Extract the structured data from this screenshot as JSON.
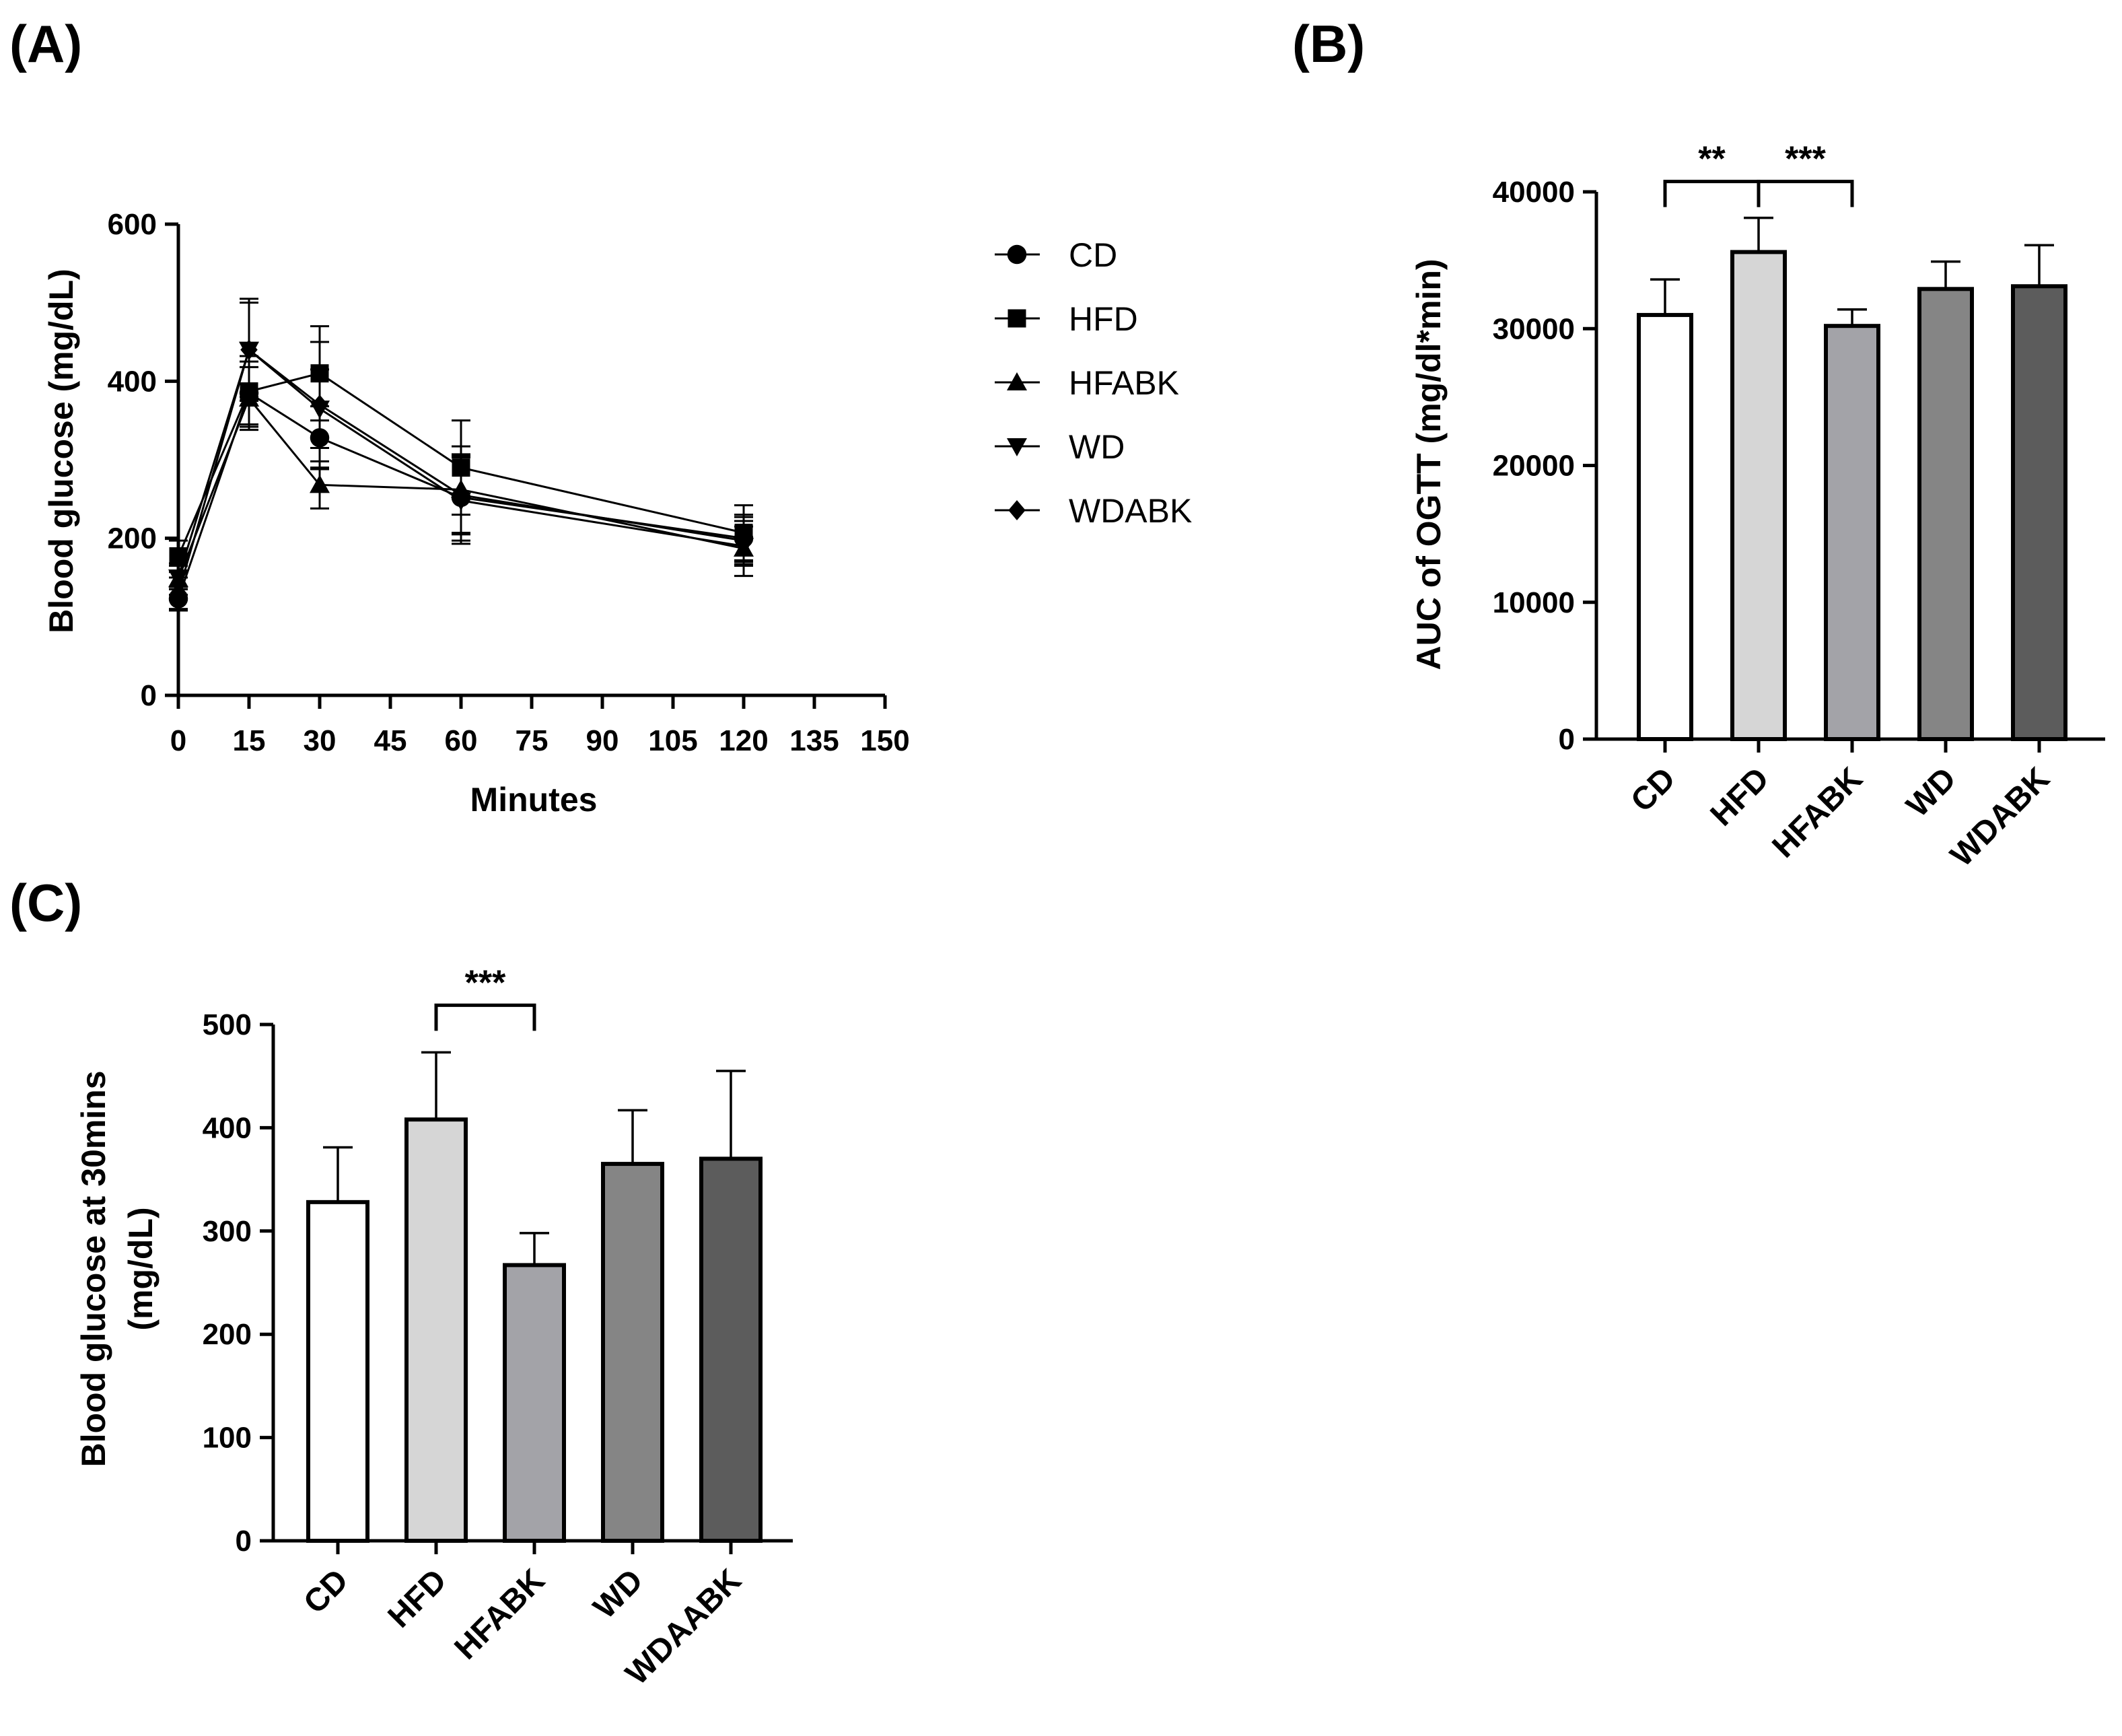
{
  "chart_data": [
    {
      "panel": "(A)",
      "type": "line",
      "xlabel": "Minutes",
      "ylabel": "Blood glucose (mg/dL)",
      "xlim": [
        0,
        150
      ],
      "ylim": [
        0,
        600
      ],
      "xticks": [
        0,
        15,
        30,
        45,
        60,
        75,
        90,
        105,
        120,
        135,
        150
      ],
      "yticks": [
        0,
        200,
        400,
        600
      ],
      "x": [
        0,
        15,
        30,
        60,
        120
      ],
      "legend_position": "right",
      "series": [
        {
          "name": "CD",
          "marker": "circle",
          "values": [
            123,
            385,
            328,
            252,
            200
          ],
          "errors": [
            15,
            40,
            40,
            55,
            30
          ]
        },
        {
          "name": "HFD",
          "marker": "square",
          "values": [
            177,
            387,
            410,
            290,
            207
          ],
          "errors": [
            20,
            45,
            60,
            60,
            35
          ]
        },
        {
          "name": "HFABK",
          "marker": "triangle-up",
          "values": [
            148,
            378,
            268,
            262,
            187
          ],
          "errors": [
            20,
            40,
            30,
            55,
            35
          ]
        },
        {
          "name": "WD",
          "marker": "triangle-down",
          "values": [
            150,
            440,
            365,
            248,
            190
          ],
          "errors": [
            15,
            65,
            50,
            55,
            25
          ]
        },
        {
          "name": "WDABK",
          "marker": "diamond",
          "values": [
            130,
            440,
            370,
            255,
            197
          ],
          "errors": [
            20,
            60,
            80,
            50,
            30
          ]
        }
      ]
    },
    {
      "panel": "(B)",
      "type": "bar",
      "ylabel": "AUC of OGTT (mg/dl*min)",
      "ylim": [
        0,
        40000
      ],
      "yticks": [
        0,
        10000,
        20000,
        30000,
        40000
      ],
      "categories": [
        "CD",
        "HFD",
        "HFABK",
        "WD",
        "WDABK"
      ],
      "values": [
        31000,
        35600,
        30200,
        32900,
        33100
      ],
      "errors": [
        2600,
        2500,
        1200,
        2000,
        3000
      ],
      "colors": [
        "#ffffff",
        "#d6d6d6",
        "#a3a3a8",
        "#858585",
        "#5c5c5c"
      ],
      "annotations": [
        {
          "from": 0,
          "to": 1,
          "text": "**"
        },
        {
          "from": 1,
          "to": 2,
          "text": "***"
        }
      ]
    },
    {
      "panel": "(C)",
      "type": "bar",
      "ylabel": "Blood glucose at 30mins (mg/dL)",
      "ylabel_lines": [
        "Blood glucose at 30mins",
        "(mg/dL)"
      ],
      "ylim": [
        0,
        500
      ],
      "yticks": [
        0,
        100,
        200,
        300,
        400,
        500
      ],
      "categories": [
        "CD",
        "HFD",
        "HFABK",
        "WD",
        "WDAABK"
      ],
      "values": [
        328,
        408,
        267,
        365,
        370
      ],
      "errors": [
        53,
        65,
        31,
        52,
        85
      ],
      "colors": [
        "#ffffff",
        "#d6d6d6",
        "#a3a3a8",
        "#858585",
        "#5c5c5c"
      ],
      "annotations": [
        {
          "from": 1,
          "to": 2,
          "text": "***"
        }
      ]
    }
  ]
}
